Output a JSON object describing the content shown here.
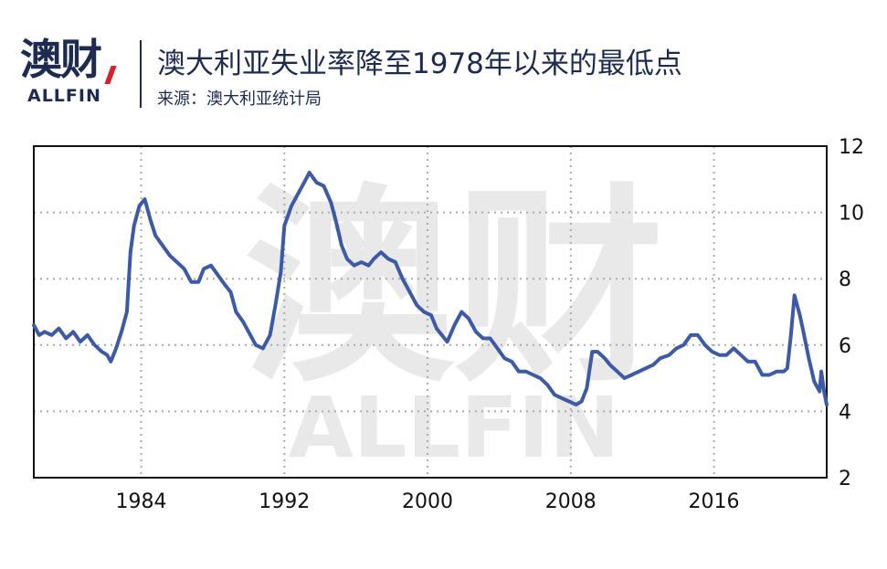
{
  "header": {
    "logo_cn": "澳财",
    "logo_en": "ALLFIN",
    "title": "澳大利亚失业率降至1978年以来的最低点",
    "source": "来源：澳大利亚统计局"
  },
  "watermark": {
    "cn": "澳财",
    "en": "ALLFIN"
  },
  "colors": {
    "line": "#3d5aa6",
    "text": "#1d2b50",
    "grid": "#aaaaaa",
    "accent": "#d4222e"
  },
  "chart_data": {
    "type": "line",
    "title": "澳大利亚失业率降至1978年以来的最低点",
    "xlabel": "",
    "ylabel": "",
    "xlim": [
      1978,
      2022.3
    ],
    "ylim": [
      2,
      12
    ],
    "x_ticks": [
      1984,
      1992,
      2000,
      2008,
      2016
    ],
    "y_ticks": [
      2,
      4,
      6,
      8,
      10,
      12
    ],
    "y_axis_side": "right",
    "grid": true,
    "legend": "none",
    "series": [
      {
        "values": [
          [
            1978.0,
            6.6
          ],
          [
            1978.3,
            6.3
          ],
          [
            1978.6,
            6.4
          ],
          [
            1979.0,
            6.3
          ],
          [
            1979.4,
            6.5
          ],
          [
            1979.8,
            6.2
          ],
          [
            1980.2,
            6.4
          ],
          [
            1980.6,
            6.1
          ],
          [
            1981.0,
            6.3
          ],
          [
            1981.4,
            6.0
          ],
          [
            1981.8,
            5.8
          ],
          [
            1982.1,
            5.7
          ],
          [
            1982.3,
            5.5
          ],
          [
            1982.6,
            5.9
          ],
          [
            1982.9,
            6.4
          ],
          [
            1983.2,
            7.0
          ],
          [
            1983.4,
            8.8
          ],
          [
            1983.6,
            9.6
          ],
          [
            1983.9,
            10.2
          ],
          [
            1984.2,
            10.4
          ],
          [
            1984.5,
            9.8
          ],
          [
            1984.8,
            9.3
          ],
          [
            1985.2,
            9.0
          ],
          [
            1985.6,
            8.7
          ],
          [
            1986.0,
            8.5
          ],
          [
            1986.4,
            8.3
          ],
          [
            1986.8,
            7.9
          ],
          [
            1987.2,
            7.9
          ],
          [
            1987.5,
            8.3
          ],
          [
            1987.9,
            8.4
          ],
          [
            1988.3,
            8.1
          ],
          [
            1988.7,
            7.8
          ],
          [
            1989.0,
            7.6
          ],
          [
            1989.3,
            7.0
          ],
          [
            1989.7,
            6.7
          ],
          [
            1990.1,
            6.3
          ],
          [
            1990.4,
            6.0
          ],
          [
            1990.8,
            5.9
          ],
          [
            1991.2,
            6.3
          ],
          [
            1991.5,
            7.2
          ],
          [
            1991.8,
            8.2
          ],
          [
            1992.0,
            9.6
          ],
          [
            1992.4,
            10.2
          ],
          [
            1992.8,
            10.6
          ],
          [
            1993.1,
            10.9
          ],
          [
            1993.4,
            11.2
          ],
          [
            1993.8,
            10.9
          ],
          [
            1994.2,
            10.8
          ],
          [
            1994.6,
            10.3
          ],
          [
            1994.9,
            9.7
          ],
          [
            1995.2,
            9.0
          ],
          [
            1995.5,
            8.6
          ],
          [
            1995.9,
            8.4
          ],
          [
            1996.3,
            8.5
          ],
          [
            1996.7,
            8.4
          ],
          [
            1997.0,
            8.6
          ],
          [
            1997.4,
            8.8
          ],
          [
            1997.8,
            8.6
          ],
          [
            1998.2,
            8.5
          ],
          [
            1998.6,
            8.0
          ],
          [
            1999.0,
            7.6
          ],
          [
            1999.4,
            7.2
          ],
          [
            1999.8,
            7.0
          ],
          [
            2000.2,
            6.9
          ],
          [
            2000.5,
            6.5
          ],
          [
            2000.8,
            6.3
          ],
          [
            2001.1,
            6.1
          ],
          [
            2001.5,
            6.6
          ],
          [
            2001.9,
            7.0
          ],
          [
            2002.3,
            6.8
          ],
          [
            2002.7,
            6.4
          ],
          [
            2003.1,
            6.2
          ],
          [
            2003.5,
            6.2
          ],
          [
            2003.9,
            5.9
          ],
          [
            2004.3,
            5.6
          ],
          [
            2004.7,
            5.5
          ],
          [
            2005.1,
            5.2
          ],
          [
            2005.5,
            5.2
          ],
          [
            2005.9,
            5.1
          ],
          [
            2006.3,
            5.0
          ],
          [
            2006.7,
            4.8
          ],
          [
            2007.1,
            4.5
          ],
          [
            2007.5,
            4.4
          ],
          [
            2007.9,
            4.3
          ],
          [
            2008.3,
            4.2
          ],
          [
            2008.6,
            4.3
          ],
          [
            2008.9,
            4.7
          ],
          [
            2009.2,
            5.8
          ],
          [
            2009.5,
            5.8
          ],
          [
            2009.9,
            5.6
          ],
          [
            2010.2,
            5.4
          ],
          [
            2010.6,
            5.2
          ],
          [
            2011.0,
            5.0
          ],
          [
            2011.4,
            5.1
          ],
          [
            2011.8,
            5.2
          ],
          [
            2012.2,
            5.3
          ],
          [
            2012.6,
            5.4
          ],
          [
            2013.0,
            5.6
          ],
          [
            2013.5,
            5.7
          ],
          [
            2013.9,
            5.9
          ],
          [
            2014.3,
            6.0
          ],
          [
            2014.7,
            6.3
          ],
          [
            2015.1,
            6.3
          ],
          [
            2015.5,
            6.0
          ],
          [
            2015.9,
            5.8
          ],
          [
            2016.3,
            5.7
          ],
          [
            2016.7,
            5.7
          ],
          [
            2017.1,
            5.9
          ],
          [
            2017.5,
            5.7
          ],
          [
            2017.9,
            5.5
          ],
          [
            2018.3,
            5.5
          ],
          [
            2018.7,
            5.1
          ],
          [
            2019.1,
            5.1
          ],
          [
            2019.5,
            5.2
          ],
          [
            2019.9,
            5.2
          ],
          [
            2020.1,
            5.3
          ],
          [
            2020.3,
            6.3
          ],
          [
            2020.5,
            7.5
          ],
          [
            2020.8,
            6.9
          ],
          [
            2021.0,
            6.4
          ],
          [
            2021.3,
            5.6
          ],
          [
            2021.6,
            4.9
          ],
          [
            2021.9,
            4.6
          ],
          [
            2022.0,
            5.2
          ],
          [
            2022.15,
            4.6
          ],
          [
            2022.3,
            4.2
          ]
        ]
      }
    ]
  }
}
